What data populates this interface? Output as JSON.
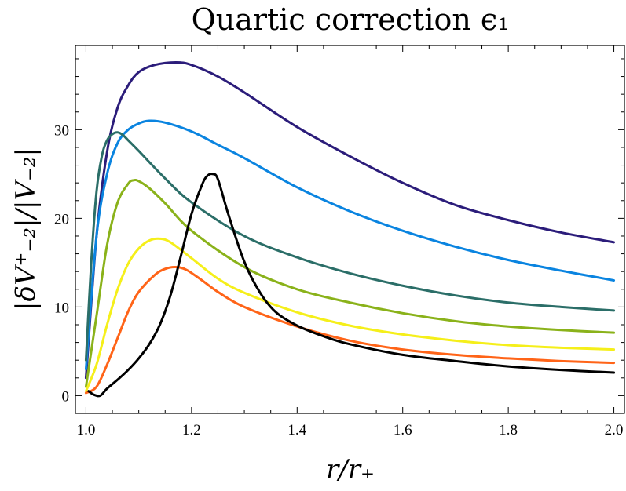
{
  "chart_data": {
    "type": "line",
    "title": "Quartic correction ϵ₁",
    "xlabel": "r/r₊",
    "ylabel": "|δV⁺₋₂|/|V₋₂|",
    "xlim": [
      0.98,
      2.02
    ],
    "ylim": [
      -2,
      39.5
    ],
    "xticks": [
      {
        "value": 1.0,
        "label": "1.0"
      },
      {
        "value": 1.2,
        "label": "1.2"
      },
      {
        "value": 1.4,
        "label": "1.4"
      },
      {
        "value": 1.6,
        "label": "1.6"
      },
      {
        "value": 1.8,
        "label": "1.8"
      },
      {
        "value": 2.0,
        "label": "2.0"
      }
    ],
    "yticks": [
      {
        "value": 0,
        "label": "0"
      },
      {
        "value": 10,
        "label": "10"
      },
      {
        "value": 20,
        "label": "20"
      },
      {
        "value": 30,
        "label": "30"
      }
    ],
    "grid": false,
    "series": [
      {
        "color": "#2b1c7a",
        "x": [
          1.0,
          1.02,
          1.04,
          1.06,
          1.08,
          1.1,
          1.13,
          1.17,
          1.2,
          1.25,
          1.3,
          1.4,
          1.5,
          1.6,
          1.7,
          1.8,
          1.9,
          2.0
        ],
        "y": [
          2.0,
          18.0,
          27.5,
          32.5,
          35.0,
          36.5,
          37.3,
          37.6,
          37.3,
          36.0,
          34.2,
          30.3,
          27.0,
          24.0,
          21.5,
          19.8,
          18.4,
          17.3
        ]
      },
      {
        "color": "#0a84e0",
        "x": [
          1.0,
          1.02,
          1.04,
          1.06,
          1.08,
          1.1,
          1.12,
          1.15,
          1.2,
          1.25,
          1.3,
          1.4,
          1.5,
          1.6,
          1.7,
          1.8,
          1.9,
          2.0
        ],
        "y": [
          3.0,
          18.0,
          25.0,
          28.5,
          30.0,
          30.7,
          31.0,
          30.8,
          29.8,
          28.3,
          26.8,
          23.5,
          20.8,
          18.6,
          16.8,
          15.3,
          14.1,
          13.0
        ]
      },
      {
        "color": "#2b6e68",
        "x": [
          1.0,
          1.01,
          1.02,
          1.03,
          1.04,
          1.05,
          1.06,
          1.07,
          1.08,
          1.1,
          1.15,
          1.2,
          1.3,
          1.4,
          1.5,
          1.6,
          1.7,
          1.8,
          1.9,
          2.0
        ],
        "y": [
          4.0,
          15.0,
          23.0,
          27.0,
          28.8,
          29.5,
          29.7,
          29.4,
          28.8,
          27.6,
          24.5,
          21.8,
          18.0,
          15.6,
          13.8,
          12.4,
          11.3,
          10.5,
          10.0,
          9.6
        ]
      },
      {
        "color": "#8ab21a",
        "x": [
          1.0,
          1.02,
          1.04,
          1.06,
          1.08,
          1.09,
          1.1,
          1.12,
          1.15,
          1.2,
          1.3,
          1.4,
          1.5,
          1.6,
          1.7,
          1.8,
          1.9,
          2.0
        ],
        "y": [
          1.0,
          9.0,
          17.0,
          21.8,
          23.9,
          24.3,
          24.2,
          23.4,
          21.7,
          18.6,
          14.5,
          12.0,
          10.5,
          9.3,
          8.4,
          7.8,
          7.4,
          7.1
        ]
      },
      {
        "color": "#f5ef1a",
        "x": [
          1.0,
          1.02,
          1.04,
          1.06,
          1.08,
          1.1,
          1.12,
          1.14,
          1.16,
          1.2,
          1.25,
          1.3,
          1.4,
          1.5,
          1.6,
          1.7,
          1.8,
          1.9,
          2.0
        ],
        "y": [
          0.5,
          3.5,
          8.0,
          12.0,
          14.9,
          16.6,
          17.5,
          17.7,
          17.3,
          15.5,
          13.2,
          11.6,
          9.4,
          7.9,
          6.9,
          6.2,
          5.7,
          5.4,
          5.2
        ]
      },
      {
        "color": "#ff6418",
        "x": [
          1.0,
          1.02,
          1.04,
          1.06,
          1.08,
          1.1,
          1.13,
          1.15,
          1.17,
          1.19,
          1.22,
          1.25,
          1.3,
          1.4,
          1.5,
          1.6,
          1.7,
          1.8,
          1.9,
          2.0
        ],
        "y": [
          0.3,
          1.0,
          3.5,
          6.5,
          9.5,
          11.7,
          13.6,
          14.3,
          14.5,
          14.2,
          13.0,
          11.7,
          10.0,
          7.8,
          6.2,
          5.2,
          4.6,
          4.2,
          3.9,
          3.7
        ]
      },
      {
        "color": "#000000",
        "x": [
          1.005,
          1.015,
          1.027,
          1.04,
          1.06,
          1.08,
          1.1,
          1.12,
          1.14,
          1.16,
          1.18,
          1.2,
          1.22,
          1.23,
          1.24,
          1.25,
          1.27,
          1.3,
          1.33,
          1.36,
          1.4,
          1.45,
          1.5,
          1.6,
          1.7,
          1.8,
          1.9,
          2.0
        ],
        "y": [
          0.5,
          0.1,
          0.0,
          0.8,
          1.8,
          2.9,
          4.2,
          5.8,
          8.0,
          11.3,
          15.8,
          20.5,
          23.8,
          24.8,
          25.0,
          24.4,
          20.4,
          15.1,
          11.6,
          9.4,
          7.9,
          6.7,
          5.8,
          4.6,
          3.9,
          3.3,
          2.9,
          2.6
        ]
      }
    ]
  }
}
